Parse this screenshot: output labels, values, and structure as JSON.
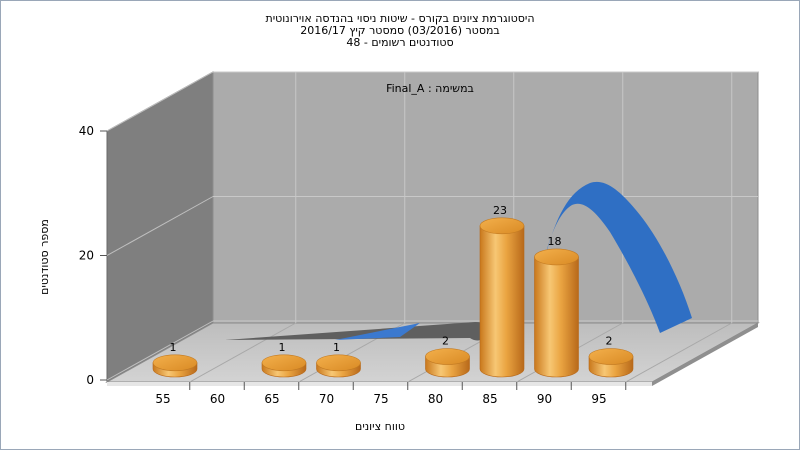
{
  "title": {
    "line1": "היסטוגרמת ציונים בקורס - שיטות ניסוי בהנדסה אוירונוטית",
    "line2": "במסטר  (03/2016)  סמסטר קיץ  2016/17",
    "line3": "סטודנטים רשומים - 48"
  },
  "chart_data": {
    "type": "bar",
    "annotation": "במשימה : Final_A",
    "xlabel": "טווח ציונים",
    "ylabel": "מספר סטודנטים",
    "ylim": [
      0,
      40
    ],
    "y_ticks": [
      "0",
      "20",
      "40"
    ],
    "x_ticks": [
      "55",
      "60",
      "65",
      "70",
      "75",
      "80",
      "85",
      "90",
      "95"
    ],
    "categories": [
      "50-55",
      "65-70",
      "70-75",
      "80-85",
      "85-90",
      "90-95",
      "95-100"
    ],
    "values": [
      1,
      1,
      1,
      2,
      23,
      18,
      2
    ],
    "value_labels": [
      "1",
      "1",
      "1",
      "2",
      "23",
      "18",
      "2"
    ],
    "grid": true,
    "colors": {
      "bar": "#e8a23a",
      "curve": "#2f6fc4",
      "back_wall": "#a9a9a9",
      "side_wall": "#7f7f7f",
      "floor": "#c9c9c9"
    }
  }
}
